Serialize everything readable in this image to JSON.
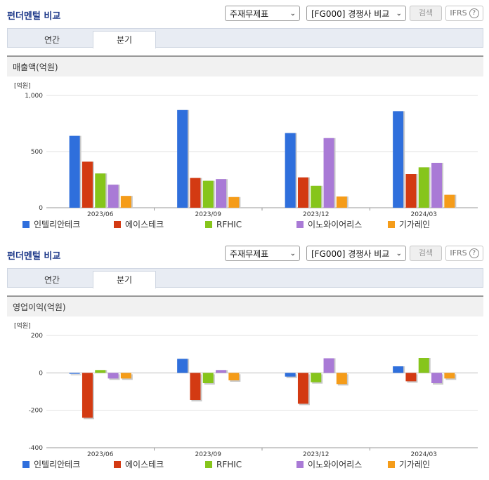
{
  "panels": [
    {
      "header_title": "펀더멘털 비교",
      "select_type": "주재무제표",
      "select_group": "[FG000] 경쟁사 비교",
      "search_label": "검색",
      "ifrs_label": "IFRS",
      "tabs": [
        "연간",
        "분기"
      ],
      "active_tab": 1,
      "subtitle": "매출액(억원)"
    },
    {
      "header_title": "펀더멘털 비교",
      "select_type": "주재무제표",
      "select_group": "[FG000] 경쟁사 비교",
      "search_label": "검색",
      "ifrs_label": "IFRS",
      "tabs": [
        "연간",
        "분기"
      ],
      "active_tab": 1,
      "subtitle": "영업이익(억원)"
    }
  ],
  "colors": {
    "인텔리안테크": "#2f6fdc",
    "에이스테크": "#d33a12",
    "RFHIC": "#86c51b",
    "이노와이어리스": "#a97ad6",
    "기가레인": "#f59c19"
  },
  "chart_data": [
    {
      "type": "bar",
      "unit_label": "[억원]",
      "categories": [
        "2023/06",
        "2023/09",
        "2023/12",
        "2024/03"
      ],
      "ylim": [
        0,
        1000
      ],
      "yticks": [
        0,
        500,
        1000
      ],
      "ytick_labels": [
        "0",
        "500",
        "1,000"
      ],
      "grid": true,
      "legend_position": "bottom",
      "series": [
        {
          "name": "인텔리안테크",
          "values": [
            640,
            870,
            665,
            860
          ]
        },
        {
          "name": "에이스테크",
          "values": [
            410,
            265,
            270,
            300
          ]
        },
        {
          "name": "RFHIC",
          "values": [
            305,
            240,
            195,
            360
          ]
        },
        {
          "name": "이노와이어리스",
          "values": [
            205,
            255,
            620,
            400
          ]
        },
        {
          "name": "기가레인",
          "values": [
            105,
            95,
            100,
            115
          ]
        }
      ]
    },
    {
      "type": "bar",
      "unit_label": "[억원]",
      "categories": [
        "2023/06",
        "2023/09",
        "2023/12",
        "2024/03"
      ],
      "ylim": [
        -400,
        200
      ],
      "yticks": [
        -400,
        -200,
        0,
        200
      ],
      "ytick_labels": [
        "-400",
        "-200",
        "0",
        "200"
      ],
      "grid": true,
      "legend_position": "bottom",
      "series": [
        {
          "name": "인텔리안테크",
          "values": [
            -5,
            75,
            -20,
            35
          ]
        },
        {
          "name": "에이스테크",
          "values": [
            -240,
            -145,
            -165,
            -45
          ]
        },
        {
          "name": "RFHIC",
          "values": [
            15,
            -55,
            -50,
            80
          ]
        },
        {
          "name": "이노와이어리스",
          "values": [
            -30,
            15,
            78,
            -55
          ]
        },
        {
          "name": "기가레인",
          "values": [
            -30,
            -40,
            -60,
            -30
          ]
        }
      ]
    }
  ]
}
